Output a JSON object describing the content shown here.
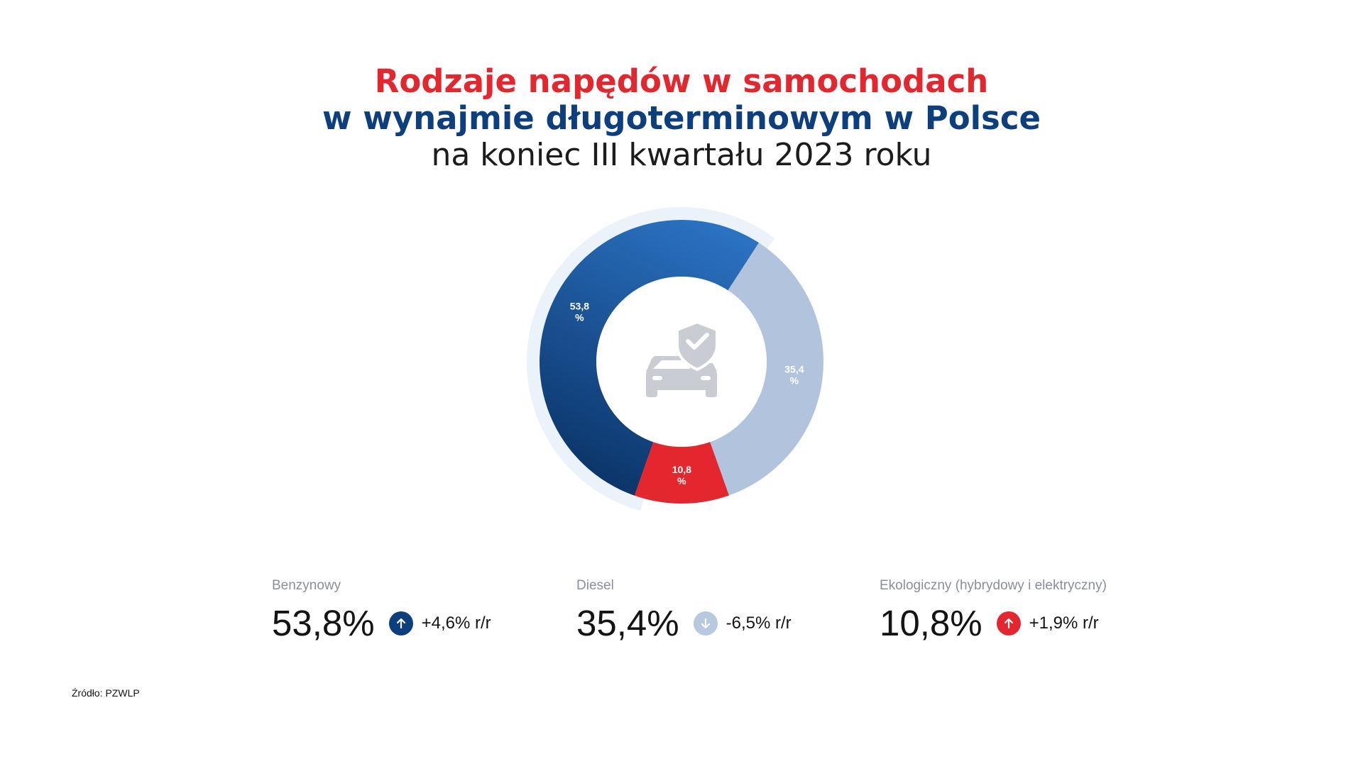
{
  "title": {
    "line1": "Rodzaje napędów w samochodach",
    "line2": "w wynajmie długoterminowym w Polsce",
    "line3": "na koniec III kwartału 2023 roku"
  },
  "colors": {
    "red": "#e4262e",
    "navy": "#0d3e7d",
    "blue_light": "#2b72c2",
    "blue_dark": "#0b3468",
    "gray_blue": "#b2c4dd",
    "track": "#ecf2f9",
    "icon": "#c9ccd2"
  },
  "center_icon": "car-shield-check-icon",
  "chart_data": {
    "type": "pie",
    "variant": "donut",
    "unit": "%",
    "slices": [
      {
        "name": "Benzynowy",
        "value": 53.8,
        "label_line1": "53,8",
        "label_line2": "%",
        "color": "#1a5aa6"
      },
      {
        "name": "Diesel",
        "value": 35.4,
        "label_line1": "35,4",
        "label_line2": "%",
        "color": "#b2c4dd"
      },
      {
        "name": "Ekologiczny (hybrydowy i elektryczny)",
        "value": 10.8,
        "label_line1": "10,8",
        "label_line2": "%",
        "color": "#e4262e"
      }
    ]
  },
  "stats": [
    {
      "label": "Benzynowy",
      "value": "53,8%",
      "change": "+4,6% r/r",
      "direction": "up",
      "arrow_color": "#0d3e7d"
    },
    {
      "label": "Diesel",
      "value": "35,4%",
      "change": "-6,5% r/r",
      "direction": "down",
      "arrow_color": "#b8c8df"
    },
    {
      "label": "Ekologiczny (hybrydowy i elektryczny)",
      "value": "10,8%",
      "change": "+1,9% r/r",
      "direction": "up",
      "arrow_color": "#e4262e"
    }
  ],
  "source": "Źródło: PZWLP"
}
